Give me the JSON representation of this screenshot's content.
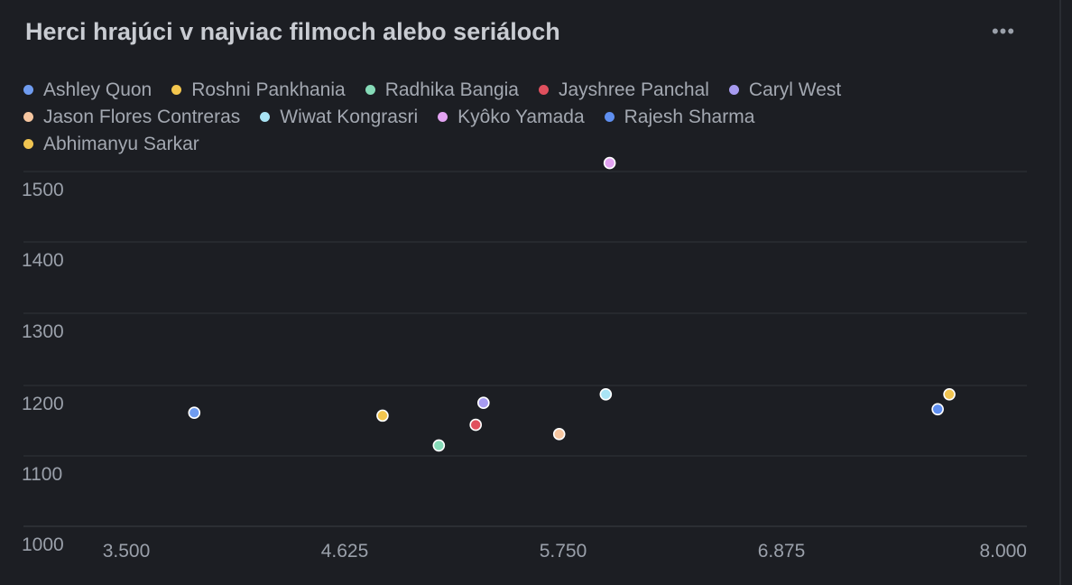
{
  "chart_data": {
    "type": "scatter",
    "title": "Herci hrajúci v najviac filmoch alebo seriáloch",
    "xlabel": "",
    "ylabel": "",
    "xlim": [
      3.5,
      8.0
    ],
    "ylim": [
      1000,
      1500
    ],
    "x_ticks": [
      "3.500",
      "4.625",
      "5.750",
      "6.875",
      "8.000"
    ],
    "y_ticks": [
      "1000",
      "1100",
      "1200",
      "1300",
      "1400",
      "1500"
    ],
    "grid": true,
    "legend_position": "top",
    "series": [
      {
        "name": "Ashley Quon",
        "color": "#6f9cf0",
        "x": [
          3.85
        ],
        "y": [
          1174
        ]
      },
      {
        "name": "Roshni Pankhania",
        "color": "#f3c64e",
        "x": [
          4.82
        ],
        "y": [
          1170
        ]
      },
      {
        "name": "Radhika Bangia",
        "color": "#86dbb8",
        "x": [
          5.11
        ],
        "y": [
          1128
        ]
      },
      {
        "name": "Jayshree Panchal",
        "color": "#e0505e",
        "x": [
          5.3
        ],
        "y": [
          1157
        ]
      },
      {
        "name": "Caryl West",
        "color": "#a79bf0",
        "x": [
          5.34
        ],
        "y": [
          1188
        ]
      },
      {
        "name": "Jason Flores Contreras",
        "color": "#f6c6a0",
        "x": [
          5.73
        ],
        "y": [
          1144
        ]
      },
      {
        "name": "Wiwat Kongrasri",
        "color": "#a9e4f5",
        "x": [
          5.97
        ],
        "y": [
          1200
        ]
      },
      {
        "name": "Kyôko Yamada",
        "color": "#e3a3f2",
        "x": [
          5.99
        ],
        "y": [
          1526
        ]
      },
      {
        "name": "Rajesh Sharma",
        "color": "#5f8ff0",
        "x": [
          7.68
        ],
        "y": [
          1179
        ]
      },
      {
        "name": "Abhimanyu Sarkar",
        "color": "#f0c451",
        "x": [
          7.74
        ],
        "y": [
          1200
        ]
      }
    ]
  },
  "menu_label": "•••",
  "colors": {
    "background": "#1c1e23",
    "grid": "#33363c",
    "text": "#9aa0aa"
  }
}
